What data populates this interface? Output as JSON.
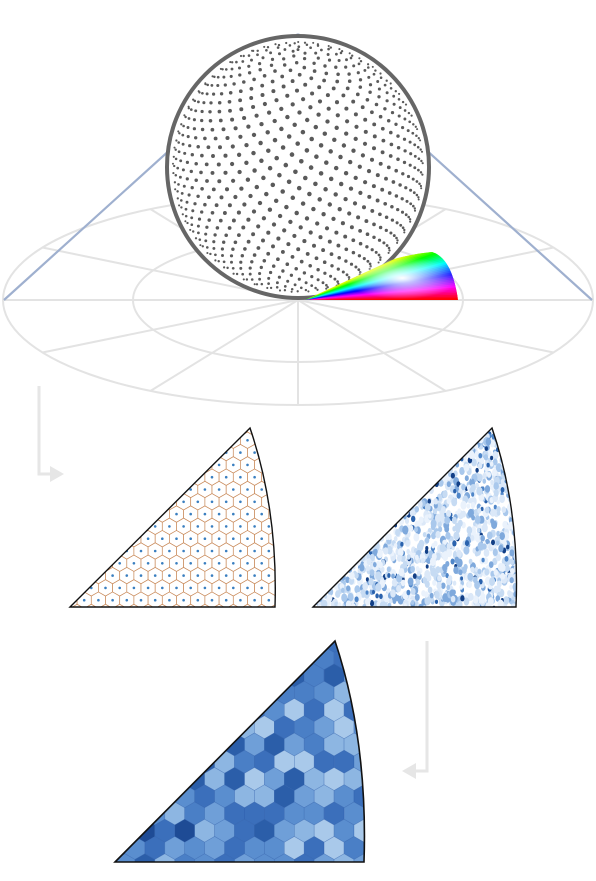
{
  "diagram": {
    "stages": [
      {
        "id": "sphere-sampling",
        "description_visible": false
      },
      {
        "id": "voronoi-tessellation"
      },
      {
        "id": "sampled-orientations"
      },
      {
        "id": "binned-density-map"
      }
    ],
    "colors": {
      "sphere_outline": "#666666",
      "sphere_dot": "#5a5a5a",
      "projection_line": "#9fb0cf",
      "polar_grid": "#e3e3e3",
      "arrow": "#e6e6e6",
      "voronoi_edge": "#c98a5a",
      "voronoi_seed": "#3a7fc0",
      "triangle_outline": "#111111",
      "blue_light": "#e8f0fb",
      "blue_dark": "#0e3d82"
    },
    "fundamental_zone_colormap": [
      "#ff0000",
      "#ff00ff",
      "#0000ff",
      "#00ffff",
      "#00ff00",
      "#ffff00",
      "#ffffff"
    ],
    "arrows": [
      {
        "id": "arrow-sphere-to-tessellation",
        "direction": "down-right"
      },
      {
        "id": "arrow-points-to-map",
        "direction": "down-left"
      }
    ]
  }
}
